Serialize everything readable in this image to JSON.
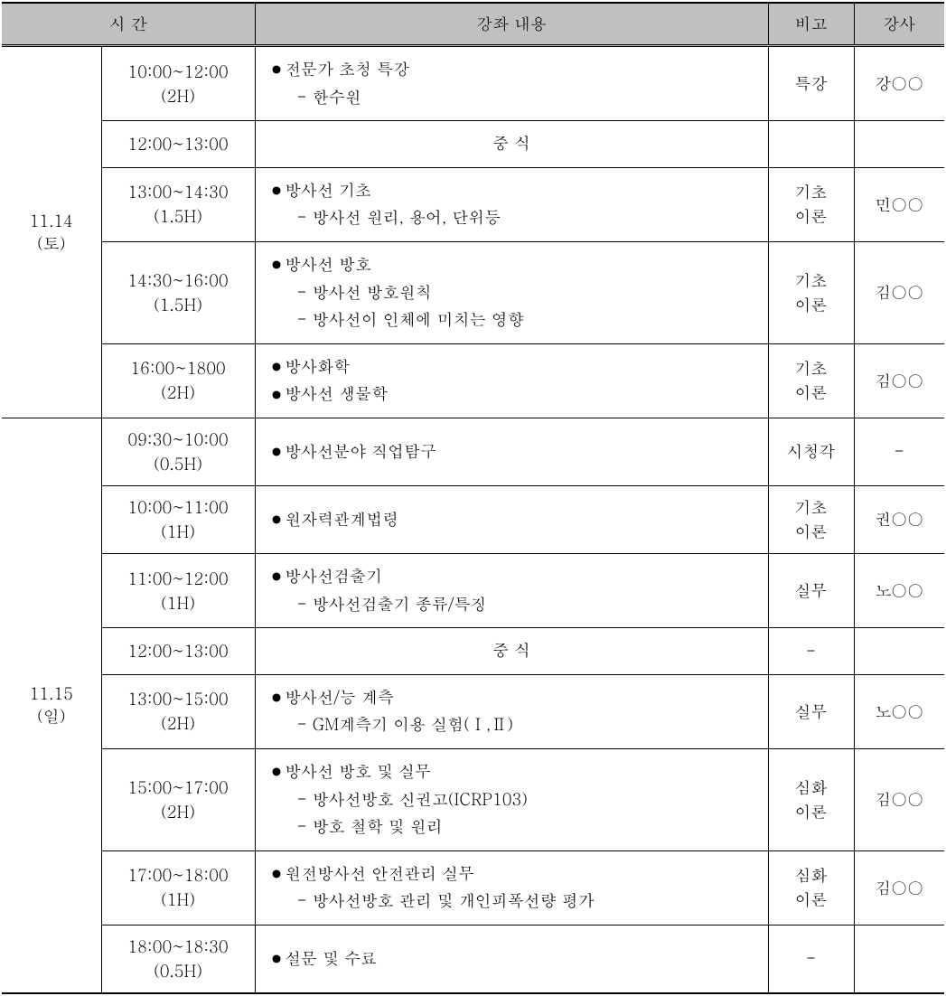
{
  "headers": {
    "time": "시   간",
    "content": "강좌 내용",
    "note": "비고",
    "instructor": "강사"
  },
  "days": [
    {
      "date_line1": "11.14",
      "date_line2": "(토)",
      "rows": [
        {
          "time_line1": "10:00~12:00",
          "time_line2": "(2H)",
          "content_items": [
            "전문가 초청 특강"
          ],
          "content_subs": [
            "한수원"
          ],
          "note": "특강",
          "instructor": "강○○"
        },
        {
          "time_line1": "12:00~13:00",
          "time_line2": "",
          "lunch": "중   식",
          "note": "",
          "instructor": ""
        },
        {
          "time_line1": "13:00~14:30",
          "time_line2": "(1.5H)",
          "content_items": [
            "방사선 기초"
          ],
          "content_subs": [
            "방사선 원리, 용어, 단위등"
          ],
          "note_line1": "기초",
          "note_line2": "이론",
          "instructor": "민○○"
        },
        {
          "time_line1": "14:30~16:00",
          "time_line2": "(1.5H)",
          "content_items": [
            "방사선 방호"
          ],
          "content_subs": [
            "방사선 방호원칙",
            "방사선이 인체에 미치는 영향"
          ],
          "note_line1": "기초",
          "note_line2": "이론",
          "instructor": "김○○"
        },
        {
          "time_line1": "16:00~1800",
          "time_line2": "(2H)",
          "content_items": [
            "방사화학",
            "방사선 생물학"
          ],
          "content_subs": [],
          "note_line1": "기초",
          "note_line2": "이론",
          "instructor": "김○○"
        }
      ]
    },
    {
      "date_line1": "11.15",
      "date_line2": "(일)",
      "rows": [
        {
          "time_line1": "09:30~10:00",
          "time_line2": "(0.5H)",
          "content_items": [
            "방사선분야 직업탐구"
          ],
          "content_subs": [],
          "note": "시청각",
          "instructor": "-"
        },
        {
          "time_line1": "10:00~11:00",
          "time_line2": "(1H)",
          "content_items": [
            "원자력관계법령"
          ],
          "content_subs": [],
          "note_line1": "기초",
          "note_line2": "이론",
          "instructor": "권○○"
        },
        {
          "time_line1": "11:00~12:00",
          "time_line2": "(1H)",
          "content_items": [
            "방사선검출기"
          ],
          "content_subs": [
            "방사선검출기 종류/특징"
          ],
          "note": "실무",
          "instructor": "노○○"
        },
        {
          "time_line1": "12:00~13:00",
          "time_line2": "",
          "lunch": "중   식",
          "note": "-",
          "instructor": ""
        },
        {
          "time_line1": "13:00~15:00",
          "time_line2": "(2H)",
          "content_items": [
            "방사선/능 계측"
          ],
          "content_subs": [
            "GM계측기 이용 실험(Ⅰ,Ⅱ)"
          ],
          "note": "실무",
          "instructor": "노○○"
        },
        {
          "time_line1": "15:00~17:00",
          "time_line2": "(2H)",
          "content_items": [
            "방사선 방호 및 실무"
          ],
          "content_subs": [
            "방사선방호 신권고(ICRP103)",
            "방호 철학 및 원리"
          ],
          "note_line1": "심화",
          "note_line2": "이론",
          "instructor": "김○○"
        },
        {
          "time_line1": "17:00~18:00",
          "time_line2": "(1H)",
          "content_items": [
            "원전방사선 안전관리 실무"
          ],
          "content_subs": [
            "방사선방호 관리 및 개인피폭선량 평가"
          ],
          "note_line1": "심화",
          "note_line2": "이론",
          "instructor": "김○○"
        },
        {
          "time_line1": "18:00~18:30",
          "time_line2": "(0.5H)",
          "content_items": [
            "설문 및 수료"
          ],
          "content_subs": [],
          "note": "-",
          "instructor": ""
        }
      ]
    }
  ]
}
